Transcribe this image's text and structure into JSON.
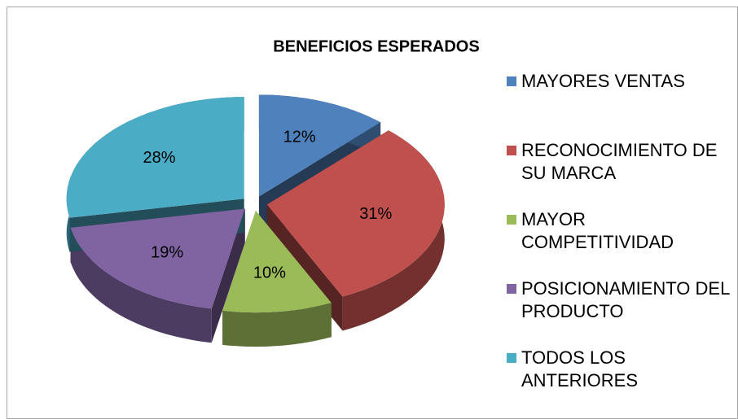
{
  "chart_data": {
    "type": "pie",
    "title": "BENEFICIOS ESPERADOS",
    "categories": [
      "MAYORES VENTAS",
      "RECONOCIMIENTO DE SU MARCA",
      "MAYOR COMPETITIVIDAD",
      "POSICIONAMIENTO DEL PRODUCTO",
      "TODOS LOS ANTERIORES"
    ],
    "values": [
      12,
      31,
      10,
      19,
      28
    ],
    "value_labels": [
      "12%",
      "31%",
      "10%",
      "19%",
      "28%"
    ],
    "colors": [
      "#4f81bd",
      "#c0504d",
      "#9bbb59",
      "#8064a2",
      "#4bacc6"
    ],
    "legend": "right"
  }
}
